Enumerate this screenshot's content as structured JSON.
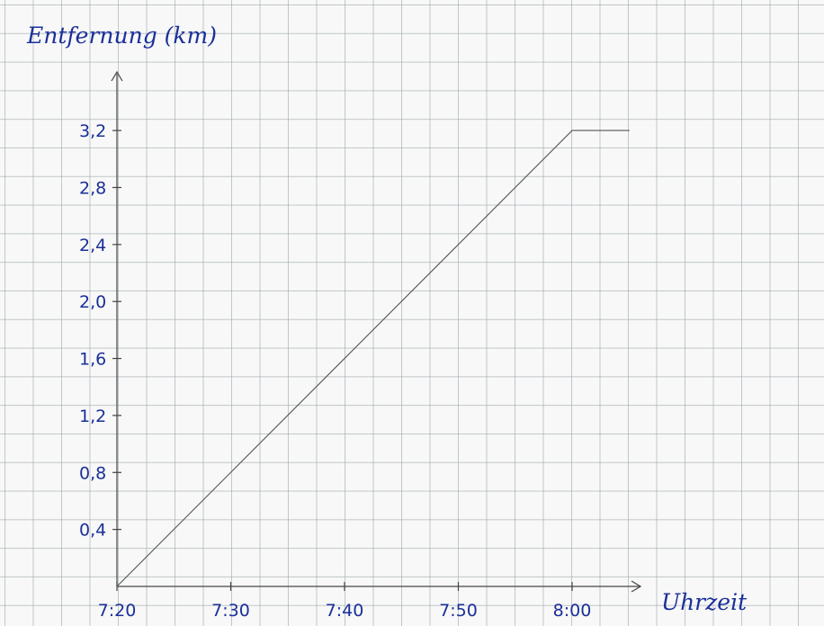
{
  "chart_data": {
    "type": "line",
    "ylabel": "Entfernung (km)",
    "xlabel": "Uhrzeit",
    "x_categories": [
      "7:20",
      "7:30",
      "7:40",
      "7:50",
      "8:00"
    ],
    "y_ticks": [
      "0,4",
      "0,8",
      "1,2",
      "1,6",
      "2,0",
      "2,4",
      "2,8",
      "3,2"
    ],
    "ylim": [
      0,
      3.2
    ],
    "grid": true,
    "series": [
      {
        "points": [
          {
            "x": "7:20",
            "y": 0
          },
          {
            "x": "8:00",
            "y": 3.2
          },
          {
            "x": "8:05",
            "y": 3.2
          }
        ]
      }
    ],
    "colors": {
      "ink": "#1b2f9a",
      "line": "#555555",
      "axis": "#444444",
      "grid": "#969ea6"
    }
  }
}
